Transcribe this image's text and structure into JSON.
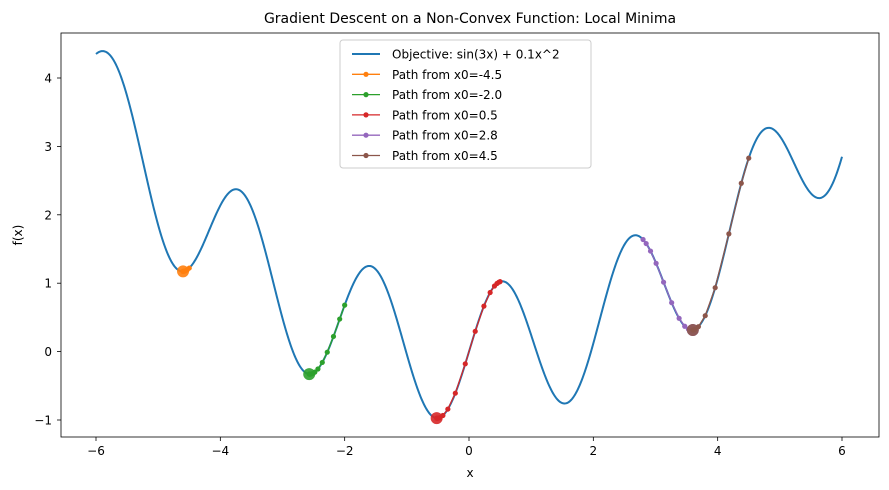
{
  "chart_data": {
    "type": "line",
    "title": "Gradient Descent on a Non-Convex Function: Local Minima",
    "xlabel": "x",
    "ylabel": "f(x)",
    "xlim": [
      -6.5,
      6.5
    ],
    "ylim": [
      -1.25,
      4.65
    ],
    "xticks": [
      -6,
      -4,
      -2,
      0,
      2,
      4,
      6
    ],
    "xtick_labels": [
      "−6",
      "−4",
      "−2",
      "0",
      "2",
      "4",
      "6"
    ],
    "yticks": [
      -1,
      0,
      1,
      2,
      3,
      4
    ],
    "ytick_labels": [
      "−1",
      "0",
      "1",
      "2",
      "3",
      "4"
    ],
    "grid": false,
    "legend_position": "upper center",
    "objective": {
      "name": "Objective: sin(3x) + 0.1x^2",
      "color": "#1f77b4",
      "x_range": [
        -6,
        6
      ],
      "formula": "sin(3x) + 0.1x^2"
    },
    "series": [
      {
        "name": "Path from x0=-4.5",
        "color": "#ff7f0e",
        "x0": -4.5,
        "x": [
          -4.5,
          -4.53,
          -4.56,
          -4.58,
          -4.59,
          -4.6,
          -4.6
        ],
        "final": [
          -4.6,
          1.18
        ]
      },
      {
        "name": "Path from x0=-2.0",
        "color": "#2ca02c",
        "x0": -2.0,
        "x": [
          -2.0,
          -2.08,
          -2.18,
          -2.28,
          -2.36,
          -2.43,
          -2.48,
          -2.52,
          -2.55,
          -2.56,
          -2.57
        ],
        "final": [
          -2.57,
          -0.33
        ]
      },
      {
        "name": "Path from x0=0.5",
        "color": "#d62728",
        "x0": 0.5,
        "x": [
          0.5,
          0.48,
          0.45,
          0.41,
          0.34,
          0.24,
          0.1,
          -0.06,
          -0.22,
          -0.34,
          -0.42,
          -0.47,
          -0.5,
          -0.51,
          -0.52
        ],
        "final": [
          -0.52,
          -0.97
        ]
      },
      {
        "name": "Path from x0=2.8",
        "color": "#9467bd",
        "x0": 2.8,
        "x": [
          2.8,
          2.85,
          2.92,
          3.01,
          3.13,
          3.26,
          3.38,
          3.47,
          3.53,
          3.57,
          3.59,
          3.6
        ],
        "final": [
          3.6,
          0.32
        ]
      },
      {
        "name": "Path from x0=4.5",
        "color": "#8c564b",
        "x0": 4.5,
        "x": [
          4.5,
          4.38,
          4.18,
          3.96,
          3.8,
          3.69,
          3.63,
          3.61,
          3.6
        ],
        "final": [
          3.6,
          0.32
        ]
      }
    ]
  }
}
